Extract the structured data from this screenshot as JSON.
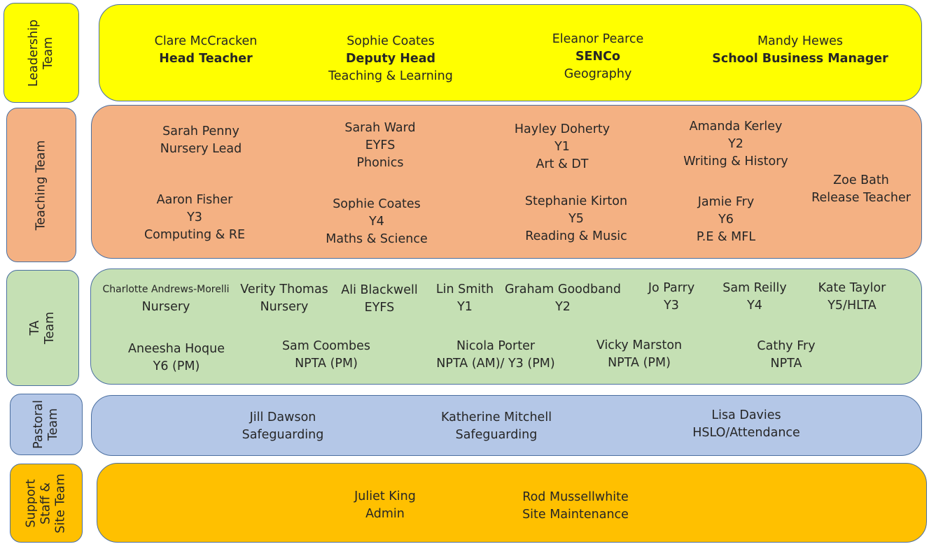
{
  "teams": {
    "leadership": {
      "label": [
        "Leadership",
        "Team"
      ],
      "members": [
        {
          "name": "Clare McCracken",
          "role": "Head Teacher"
        },
        {
          "name": "Sophie Coates",
          "role": "Deputy Head",
          "subject": "Teaching & Learning"
        },
        {
          "name": "Eleanor Pearce",
          "role": "SENCo",
          "subject": "Geography"
        },
        {
          "name": "Mandy Hewes",
          "role": "School Business Manager"
        }
      ]
    },
    "teaching": {
      "label": [
        "Teaching Team"
      ],
      "members": [
        {
          "name": "Sarah Penny",
          "class": "Nursery Lead"
        },
        {
          "name": "Sarah Ward",
          "class": "EYFS",
          "subject": "Phonics"
        },
        {
          "name": "Hayley Doherty",
          "class": "Y1",
          "subject": "Art & DT"
        },
        {
          "name": "Amanda Kerley",
          "class": "Y2",
          "subject": "Writing & History"
        },
        {
          "name": "Zoe Bath",
          "class": "Release Teacher"
        },
        {
          "name": "Aaron Fisher",
          "class": "Y3",
          "subject": "Computing &  RE"
        },
        {
          "name": "Sophie Coates",
          "class": "Y4",
          "subject": "Maths & Science"
        },
        {
          "name": "Stephanie Kirton",
          "class": "Y5",
          "subject": "Reading & Music"
        },
        {
          "name": "Jamie Fry",
          "class": "Y6",
          "subject": "P.E & MFL"
        }
      ]
    },
    "ta": {
      "label": [
        "TA",
        "Team"
      ],
      "members": [
        {
          "name": "Charlotte Andrews-Morelli",
          "class": "Nursery"
        },
        {
          "name": "Verity Thomas",
          "class": "Nursery"
        },
        {
          "name": "Ali Blackwell",
          "class": "EYFS"
        },
        {
          "name": "Lin Smith",
          "class": "Y1"
        },
        {
          "name": "Graham Goodband",
          "class": "Y2"
        },
        {
          "name": "Jo Parry",
          "class": "Y3"
        },
        {
          "name": "Sam Reilly",
          "class": "Y4"
        },
        {
          "name": "Kate Taylor",
          "class": "Y5/HLTA"
        },
        {
          "name": "Aneesha Hoque",
          "class": "Y6 (PM)"
        },
        {
          "name": "Sam Coombes",
          "class": "NPTA (PM)"
        },
        {
          "name": "Nicola Porter",
          "class": "NPTA (AM)/ Y3 (PM)"
        },
        {
          "name": "Vicky Marston",
          "class": "NPTA (PM)"
        },
        {
          "name": "Cathy Fry",
          "class": "NPTA"
        }
      ]
    },
    "pastoral": {
      "label": [
        "Pastoral",
        "Team"
      ],
      "members": [
        {
          "name": "Jill Dawson",
          "role": "Safeguarding"
        },
        {
          "name": "Katherine Mitchell",
          "role": "Safeguarding"
        },
        {
          "name": "Lisa Davies",
          "role": "HSLO/Attendance"
        }
      ]
    },
    "support": {
      "label": [
        "Support",
        "Staff &",
        "Site Team"
      ],
      "members": [
        {
          "name": "Juliet King",
          "role": "Admin"
        },
        {
          "name": "Rod Mussellwhite",
          "role": "Site Maintenance"
        }
      ]
    }
  }
}
